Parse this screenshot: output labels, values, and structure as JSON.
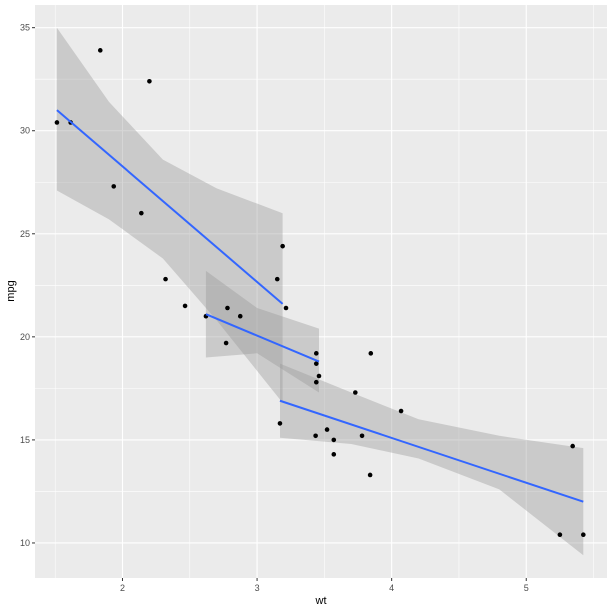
{
  "chart_data": {
    "type": "scatter",
    "xlabel": "wt",
    "ylabel": "mpg",
    "xlim": [
      1.35,
      5.6
    ],
    "ylim": [
      8.3,
      36.1
    ],
    "x_ticks": [
      {
        "value": 2,
        "label": "2"
      },
      {
        "value": 3,
        "label": "3"
      },
      {
        "value": 4,
        "label": "4"
      },
      {
        "value": 5,
        "label": "5"
      }
    ],
    "y_ticks": [
      {
        "value": 10,
        "label": "10"
      },
      {
        "value": 15,
        "label": "15"
      },
      {
        "value": 20,
        "label": "20"
      },
      {
        "value": 25,
        "label": "25"
      },
      {
        "value": 30,
        "label": "30"
      },
      {
        "value": 35,
        "label": "35"
      }
    ],
    "grid": true,
    "points": [
      [
        1.513,
        30.4
      ],
      [
        1.615,
        30.4
      ],
      [
        1.835,
        33.9
      ],
      [
        1.935,
        27.3
      ],
      [
        2.14,
        26.0
      ],
      [
        2.2,
        32.4
      ],
      [
        2.32,
        22.8
      ],
      [
        2.465,
        21.5
      ],
      [
        2.62,
        21.0
      ],
      [
        2.77,
        19.7
      ],
      [
        2.78,
        21.4
      ],
      [
        2.875,
        21.0
      ],
      [
        3.15,
        22.8
      ],
      [
        3.17,
        15.8
      ],
      [
        3.19,
        24.4
      ],
      [
        3.215,
        21.4
      ],
      [
        3.435,
        15.2
      ],
      [
        3.44,
        18.7
      ],
      [
        3.44,
        19.2
      ],
      [
        3.44,
        17.8
      ],
      [
        3.46,
        18.1
      ],
      [
        3.52,
        15.5
      ],
      [
        3.57,
        15.0
      ],
      [
        3.57,
        14.3
      ],
      [
        3.73,
        17.3
      ],
      [
        3.78,
        15.2
      ],
      [
        3.84,
        13.3
      ],
      [
        3.845,
        19.2
      ],
      [
        4.07,
        16.4
      ],
      [
        5.25,
        10.4
      ],
      [
        5.345,
        14.7
      ],
      [
        5.424,
        10.4
      ]
    ],
    "fit_lines": [
      {
        "line": [
          [
            1.513,
            31.0
          ],
          [
            3.19,
            21.6
          ]
        ],
        "band": [
          [
            1.513,
            27.1,
            35.0
          ],
          [
            1.9,
            25.7,
            31.4
          ],
          [
            2.3,
            23.8,
            28.6
          ],
          [
            2.7,
            20.8,
            27.2
          ],
          [
            3.19,
            16.8,
            26.0
          ]
        ]
      },
      {
        "line": [
          [
            2.62,
            21.1
          ],
          [
            3.46,
            18.8
          ]
        ],
        "band": [
          [
            2.62,
            19.0,
            23.2
          ],
          [
            3.0,
            19.2,
            21.4
          ],
          [
            3.46,
            17.3,
            20.4
          ]
        ]
      },
      {
        "line": [
          [
            3.17,
            16.9
          ],
          [
            5.424,
            12.0
          ]
        ],
        "band": [
          [
            3.17,
            15.1,
            18.7
          ],
          [
            3.7,
            14.8,
            17.3
          ],
          [
            4.2,
            14.1,
            16.0
          ],
          [
            4.8,
            12.6,
            15.2
          ],
          [
            5.424,
            9.4,
            14.6
          ]
        ]
      }
    ],
    "colors": {
      "panel_background": "#ebebeb",
      "grid_major": "#ffffff",
      "point": "#000000",
      "fit_line": "#3366ff",
      "confidence_band": "#999999"
    }
  }
}
